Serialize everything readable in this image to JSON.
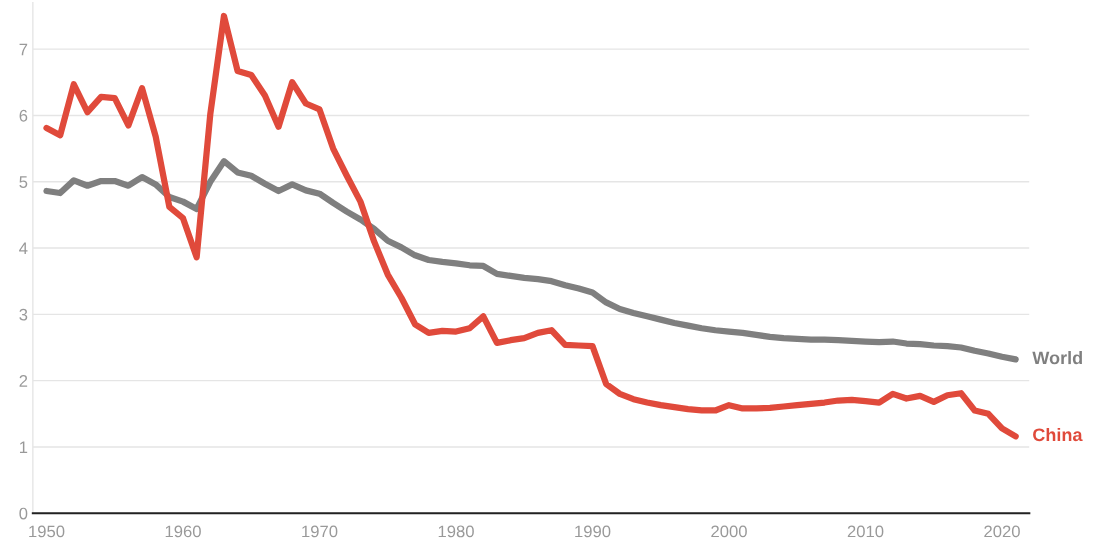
{
  "chart_data": {
    "type": "line",
    "x": [
      1950,
      1951,
      1952,
      1953,
      1954,
      1955,
      1956,
      1957,
      1958,
      1959,
      1960,
      1961,
      1962,
      1963,
      1964,
      1965,
      1966,
      1967,
      1968,
      1969,
      1970,
      1971,
      1972,
      1973,
      1974,
      1975,
      1976,
      1977,
      1978,
      1979,
      1980,
      1981,
      1982,
      1983,
      1984,
      1985,
      1986,
      1987,
      1988,
      1989,
      1990,
      1991,
      1992,
      1993,
      1994,
      1995,
      1996,
      1997,
      1998,
      1999,
      2000,
      2001,
      2002,
      2003,
      2004,
      2005,
      2006,
      2007,
      2008,
      2009,
      2010,
      2011,
      2012,
      2013,
      2014,
      2015,
      2016,
      2017,
      2018,
      2019,
      2020,
      2021
    ],
    "series": [
      {
        "name": "World",
        "color": "#7f7f7f",
        "values": [
          4.86,
          4.83,
          5.02,
          4.94,
          5.01,
          5.01,
          4.94,
          5.07,
          4.96,
          4.77,
          4.7,
          4.59,
          5.0,
          5.31,
          5.14,
          5.09,
          4.97,
          4.86,
          4.96,
          4.87,
          4.82,
          4.68,
          4.55,
          4.43,
          4.29,
          4.11,
          4.01,
          3.89,
          3.82,
          3.79,
          3.77,
          3.74,
          3.73,
          3.61,
          3.58,
          3.55,
          3.53,
          3.5,
          3.44,
          3.39,
          3.33,
          3.18,
          3.08,
          3.02,
          2.97,
          2.92,
          2.87,
          2.83,
          2.79,
          2.76,
          2.74,
          2.72,
          2.69,
          2.66,
          2.64,
          2.63,
          2.62,
          2.62,
          2.61,
          2.6,
          2.59,
          2.58,
          2.59,
          2.56,
          2.55,
          2.53,
          2.52,
          2.5,
          2.45,
          2.41,
          2.36,
          2.32
        ]
      },
      {
        "name": "China",
        "color": "#e04a3b",
        "values": [
          5.81,
          5.7,
          6.47,
          6.05,
          6.28,
          6.26,
          5.85,
          6.41,
          5.68,
          4.62,
          4.45,
          3.86,
          6.02,
          7.5,
          6.67,
          6.61,
          6.3,
          5.83,
          6.5,
          6.18,
          6.09,
          5.5,
          5.09,
          4.7,
          4.1,
          3.6,
          3.25,
          2.85,
          2.72,
          2.75,
          2.74,
          2.79,
          2.97,
          2.57,
          2.61,
          2.64,
          2.72,
          2.76,
          2.54,
          2.53,
          2.52,
          1.95,
          1.8,
          1.72,
          1.67,
          1.63,
          1.6,
          1.57,
          1.55,
          1.55,
          1.63,
          1.58,
          1.58,
          1.59,
          1.61,
          1.63,
          1.65,
          1.67,
          1.7,
          1.71,
          1.69,
          1.67,
          1.8,
          1.73,
          1.77,
          1.68,
          1.78,
          1.81,
          1.55,
          1.5,
          1.28,
          1.16
        ]
      }
    ],
    "xlim": [
      1949,
      2022
    ],
    "xticks": [
      1950,
      1960,
      1970,
      1980,
      1990,
      2000,
      2010,
      2020
    ],
    "ylim": [
      0,
      7.7
    ],
    "yticks": [
      0,
      1,
      2,
      3,
      4,
      5,
      6,
      7
    ],
    "grid": "y",
    "legend": false,
    "marker": "none",
    "line_style": "solid"
  }
}
